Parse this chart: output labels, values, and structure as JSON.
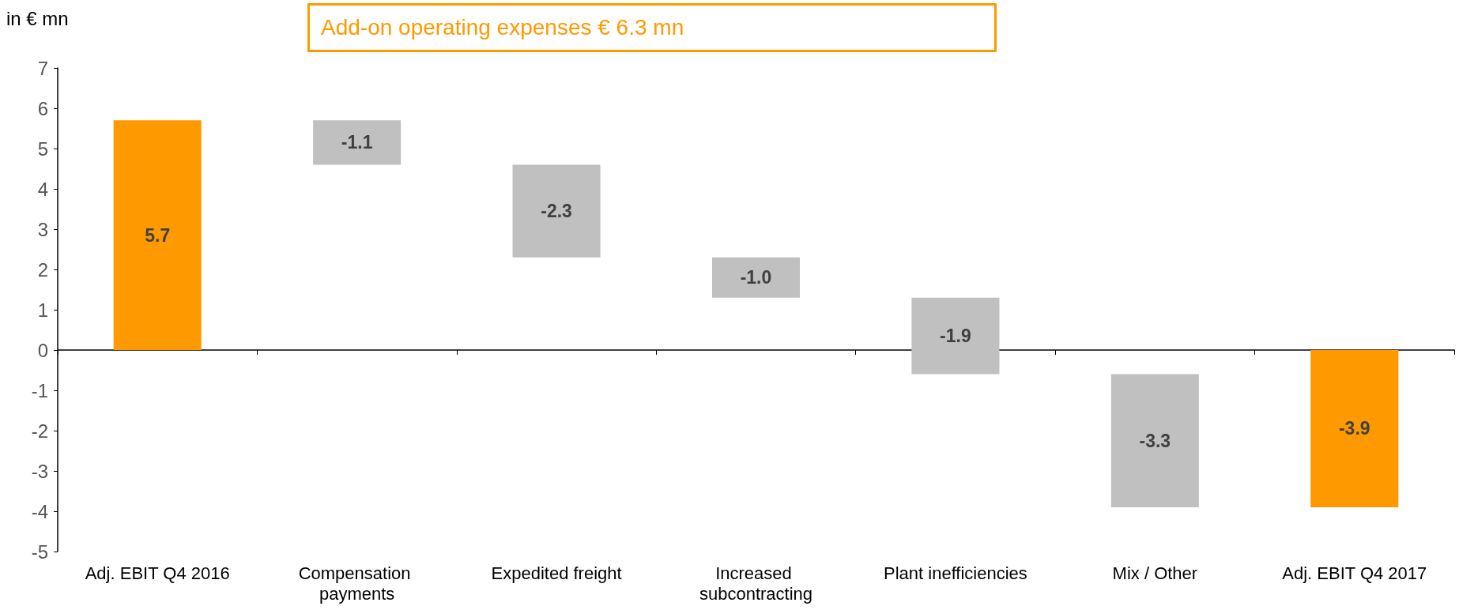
{
  "chart_data": {
    "type": "bar",
    "ylabel": "in € mn",
    "annotations": [
      "Add-on operating expenses € 6.3 mn"
    ],
    "categories": [
      "Adj. EBIT Q4 2016",
      "Compensation payments",
      "Expedited freight",
      "Increased subcontracting",
      "Plant inefficiencies",
      "Mix / Other",
      "Adj. EBIT Q4 2017"
    ],
    "values": [
      5.7,
      -1.1,
      -2.3,
      -1.0,
      -1.9,
      -3.3,
      -3.9
    ],
    "base": [
      0,
      5.7,
      4.6,
      2.3,
      1.3,
      -0.6,
      0
    ],
    "colors": [
      "#ff9900",
      "#c0c0c0",
      "#c0c0c0",
      "#c0c0c0",
      "#c0c0c0",
      "#c0c0c0",
      "#ff9900"
    ],
    "ylim": [
      -5,
      7
    ],
    "yticks": [
      -5,
      -4,
      -3,
      -2,
      -1,
      0,
      1,
      2,
      3,
      4,
      5,
      6,
      7
    ],
    "value_labels": [
      "5.7",
      "-1.1",
      "-2.3",
      "-1.0",
      "-1.9",
      "-3.3",
      "-3.9"
    ]
  }
}
